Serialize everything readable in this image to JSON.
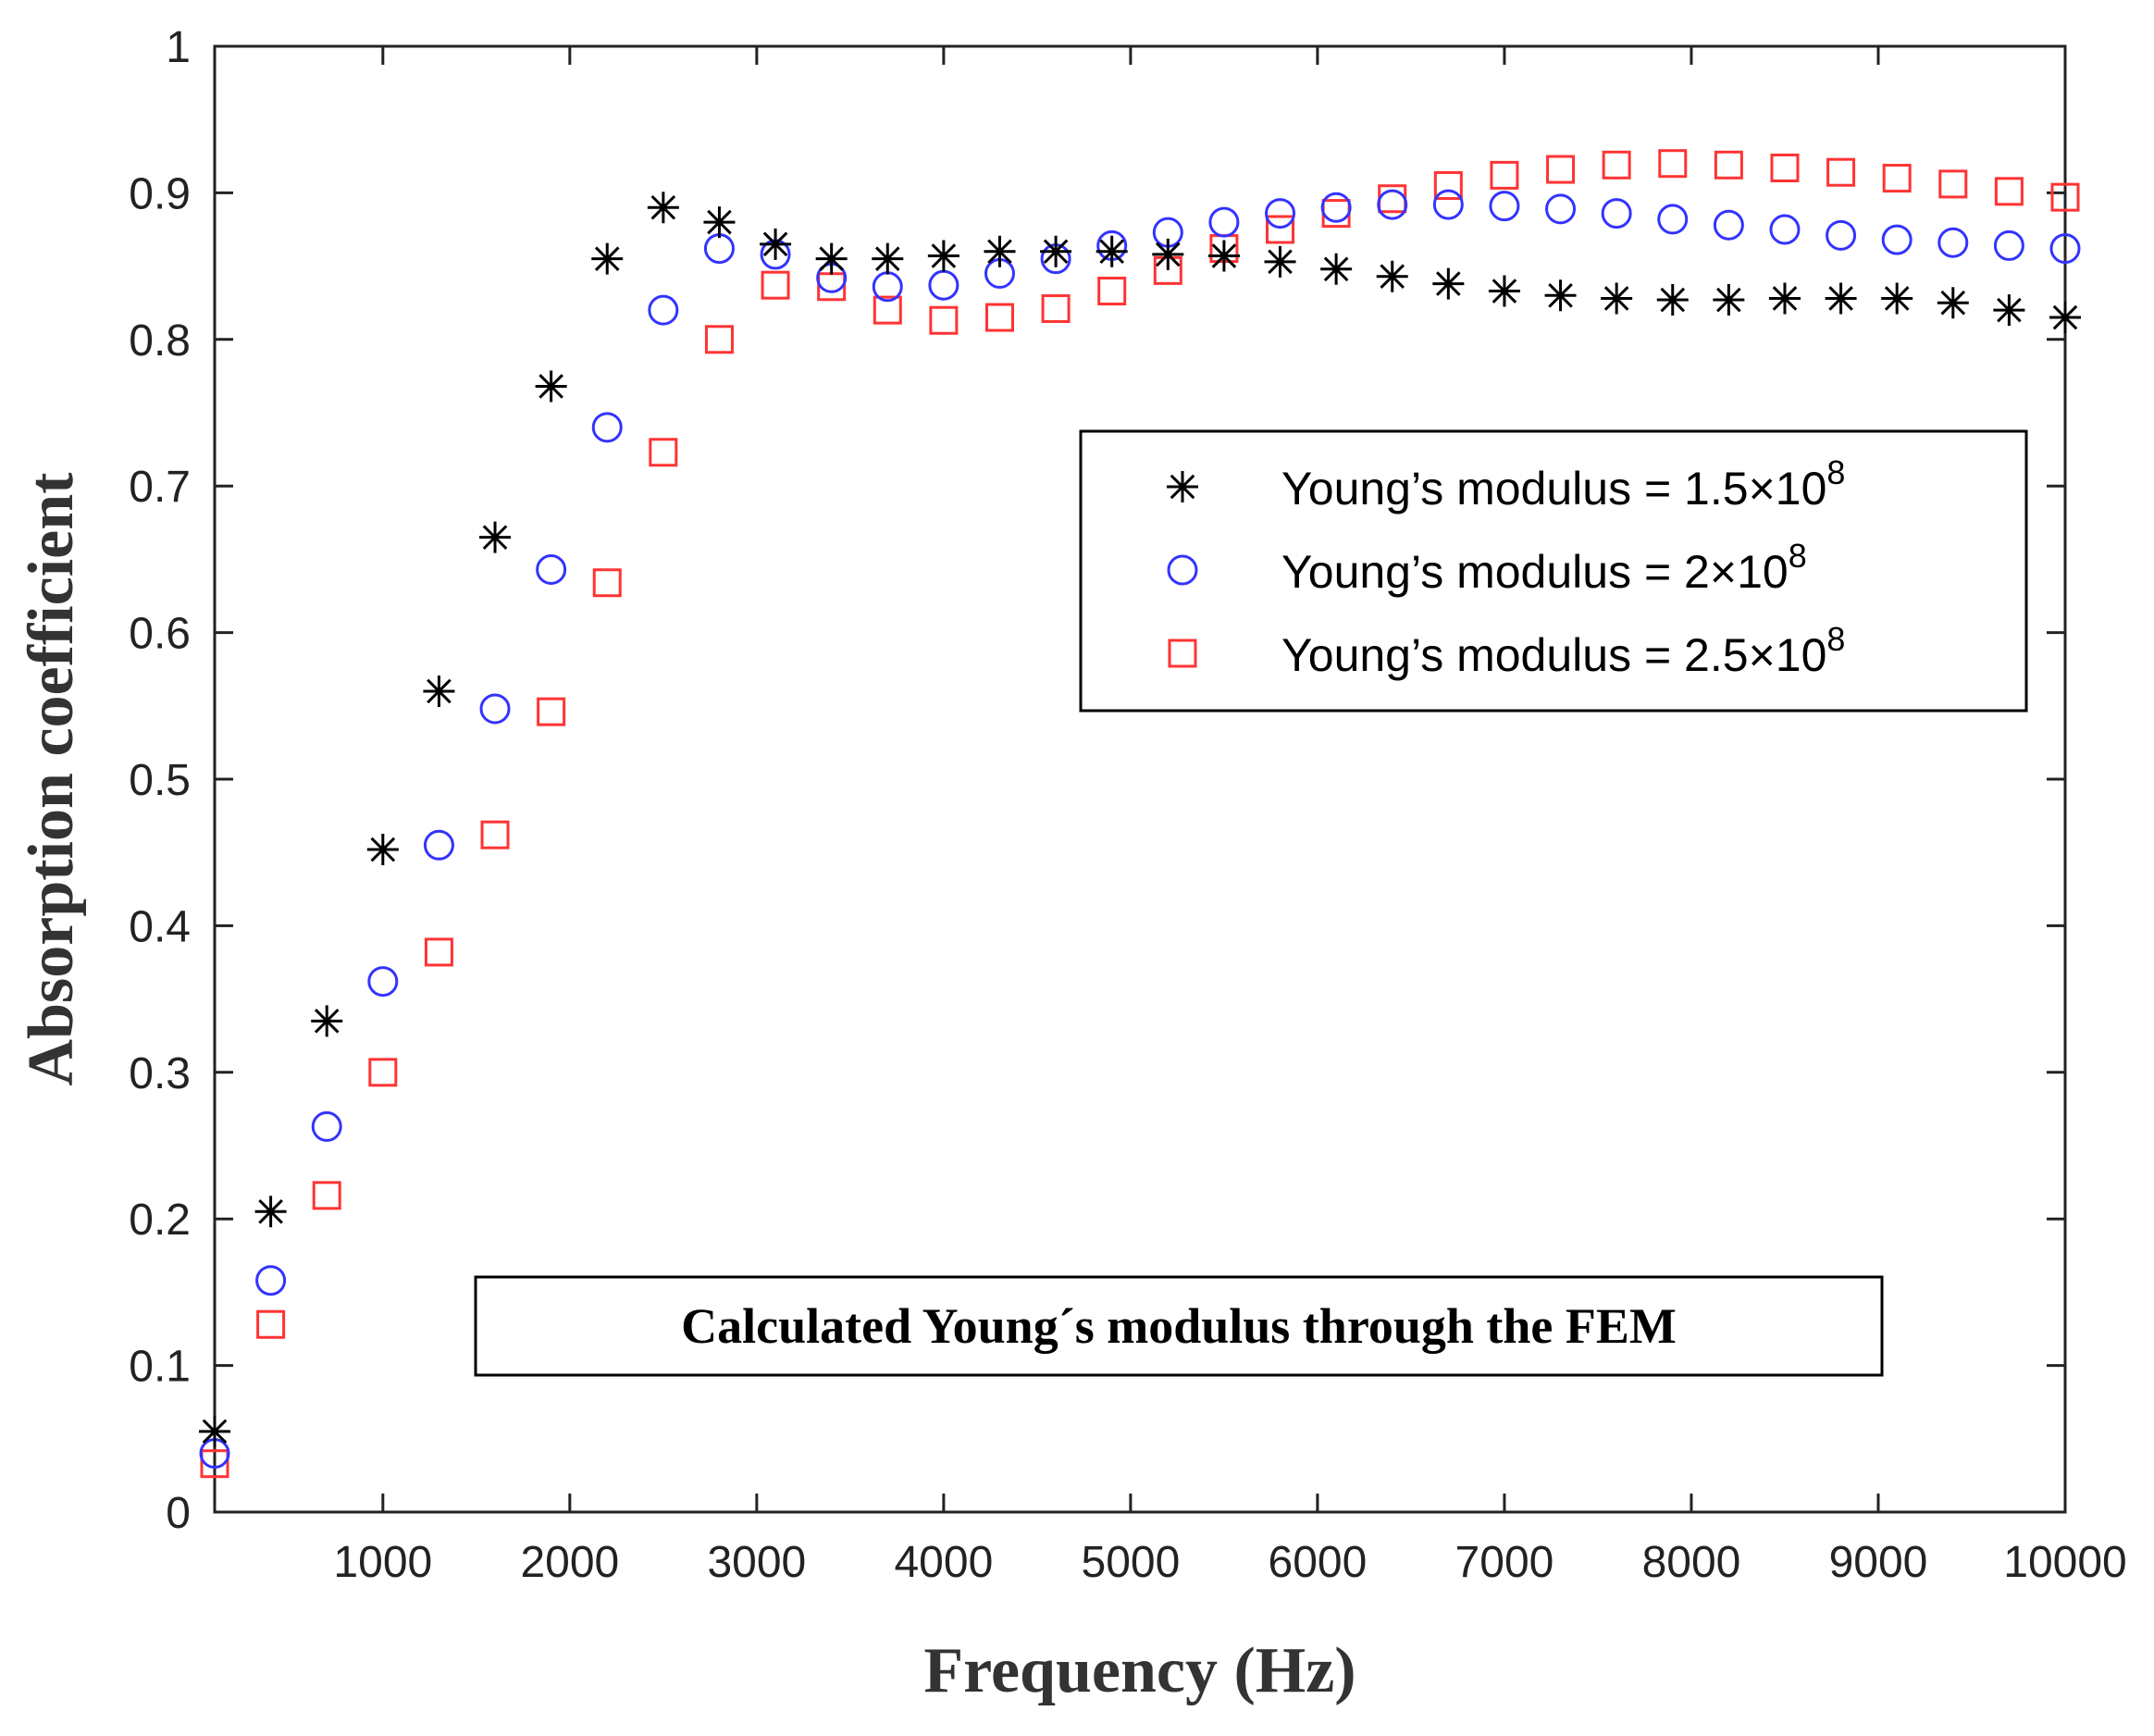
{
  "chart_data": {
    "type": "scatter",
    "title": "",
    "xlabel": "Frequency (Hz)",
    "ylabel": "Absorption coefficient",
    "xlim": [
      100,
      10000
    ],
    "ylim": [
      0,
      1
    ],
    "xticks": [
      1000,
      2000,
      3000,
      4000,
      5000,
      6000,
      7000,
      8000,
      9000,
      10000
    ],
    "yticks": [
      0,
      0.1,
      0.2,
      0.3,
      0.4,
      0.5,
      0.6,
      0.7,
      0.8,
      0.9,
      1
    ],
    "grid": false,
    "legend_position": "upper-right",
    "annotation": "Calculated Young´s modulus through the  FEM",
    "x": [
      100,
      400,
      700,
      1000,
      1300,
      1600,
      1900,
      2200,
      2500,
      2800,
      3100,
      3400,
      3700,
      4000,
      4300,
      4600,
      4900,
      5200,
      5500,
      5800,
      6100,
      6400,
      6700,
      7000,
      7300,
      7600,
      7900,
      8200,
      8500,
      8800,
      9100,
      9400,
      9700,
      10000
    ],
    "series": [
      {
        "name": "Young’s modulus = 1.5×10",
        "exponent": "8",
        "marker": "asterisk",
        "color": "#000000",
        "values": [
          0.055,
          0.205,
          0.335,
          0.452,
          0.56,
          0.665,
          0.768,
          0.855,
          0.89,
          0.88,
          0.865,
          0.855,
          0.855,
          0.857,
          0.86,
          0.86,
          0.86,
          0.858,
          0.857,
          0.853,
          0.848,
          0.843,
          0.838,
          0.833,
          0.83,
          0.828,
          0.827,
          0.827,
          0.828,
          0.828,
          0.828,
          0.825,
          0.82,
          0.815
        ]
      },
      {
        "name": "Young’s modulus = 2×10",
        "exponent": "8",
        "marker": "circle",
        "color": "#3333ff",
        "values": [
          0.04,
          0.158,
          0.263,
          0.362,
          0.455,
          0.548,
          0.643,
          0.74,
          0.82,
          0.862,
          0.858,
          0.842,
          0.836,
          0.837,
          0.845,
          0.855,
          0.864,
          0.873,
          0.88,
          0.886,
          0.89,
          0.892,
          0.892,
          0.891,
          0.889,
          0.886,
          0.882,
          0.878,
          0.875,
          0.871,
          0.868,
          0.866,
          0.864,
          0.862
        ]
      },
      {
        "name": "Young’s modulus = 2.5×10",
        "exponent": "8",
        "marker": "square",
        "color": "#ff3333",
        "values": [
          0.033,
          0.128,
          0.216,
          0.3,
          0.382,
          0.462,
          0.546,
          0.634,
          0.723,
          0.8,
          0.837,
          0.836,
          0.82,
          0.813,
          0.815,
          0.821,
          0.833,
          0.847,
          0.862,
          0.875,
          0.886,
          0.896,
          0.905,
          0.912,
          0.916,
          0.919,
          0.92,
          0.919,
          0.917,
          0.914,
          0.91,
          0.906,
          0.901,
          0.897
        ]
      }
    ]
  }
}
